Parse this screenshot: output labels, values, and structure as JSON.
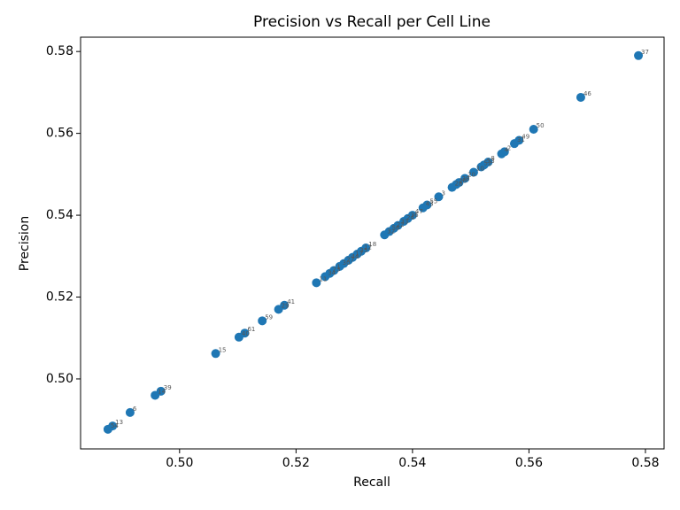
{
  "chart_data": {
    "type": "scatter",
    "title": "Precision vs Recall per Cell Line",
    "x_label": "Recall",
    "y_label": "Precision",
    "series": [
      {
        "color": "#1f77b4",
        "labels": [
          "37",
          "46",
          "50",
          "49",
          "31",
          "2",
          "4",
          "8",
          "53",
          "52",
          "10",
          "20",
          "38",
          "26",
          "28",
          "3",
          "55",
          "43",
          "47",
          "36",
          "24",
          "33",
          "22",
          "56",
          "32",
          "18",
          "12",
          "35",
          "17",
          "44",
          "27",
          "30",
          "1",
          "23",
          "34",
          "11",
          "41",
          "29",
          "59",
          "61",
          "40",
          "15",
          "39",
          "14",
          "6",
          "13",
          "54"
        ],
        "x": [
          0.5788,
          0.5689,
          0.5608,
          0.5583,
          0.5575,
          0.5558,
          0.5553,
          0.553,
          0.5523,
          0.5518,
          0.5505,
          0.549,
          0.548,
          0.5475,
          0.5468,
          0.5445,
          0.5425,
          0.5418,
          0.54,
          0.5392,
          0.5385,
          0.5375,
          0.5368,
          0.536,
          0.5352,
          0.532,
          0.5312,
          0.5305,
          0.5297,
          0.529,
          0.5282,
          0.5275,
          0.5265,
          0.5258,
          0.525,
          0.5235,
          0.518,
          0.517,
          0.5142,
          0.5112,
          0.5102,
          0.5062,
          0.4968,
          0.4958,
          0.4915,
          0.4885,
          0.4877
        ],
        "values": [
          0.579,
          0.5688,
          0.561,
          0.5583,
          0.5575,
          0.5555,
          0.555,
          0.553,
          0.5523,
          0.5518,
          0.5505,
          0.549,
          0.548,
          0.5475,
          0.5468,
          0.5445,
          0.5425,
          0.5418,
          0.54,
          0.5392,
          0.5385,
          0.5375,
          0.5368,
          0.536,
          0.5352,
          0.532,
          0.5312,
          0.5305,
          0.5297,
          0.529,
          0.5282,
          0.5275,
          0.5265,
          0.5258,
          0.525,
          0.5235,
          0.518,
          0.517,
          0.5142,
          0.5112,
          0.5102,
          0.5062,
          0.497,
          0.496,
          0.4918,
          0.4885,
          0.4877
        ]
      }
    ],
    "xlim": [
      0.483,
      0.5832
    ],
    "ylim": [
      0.4829,
      0.5835
    ],
    "xticks": [
      {
        "value": 0.5,
        "label": "0.50"
      },
      {
        "value": 0.52,
        "label": "0.52"
      },
      {
        "value": 0.54,
        "label": "0.54"
      },
      {
        "value": 0.56,
        "label": "0.56"
      },
      {
        "value": 0.58,
        "label": "0.58"
      }
    ],
    "yticks": [
      {
        "value": 0.5,
        "label": "0.50"
      },
      {
        "value": 0.52,
        "label": "0.52"
      },
      {
        "value": 0.54,
        "label": "0.54"
      },
      {
        "value": 0.56,
        "label": "0.56"
      },
      {
        "value": 0.58,
        "label": "0.58"
      }
    ]
  }
}
